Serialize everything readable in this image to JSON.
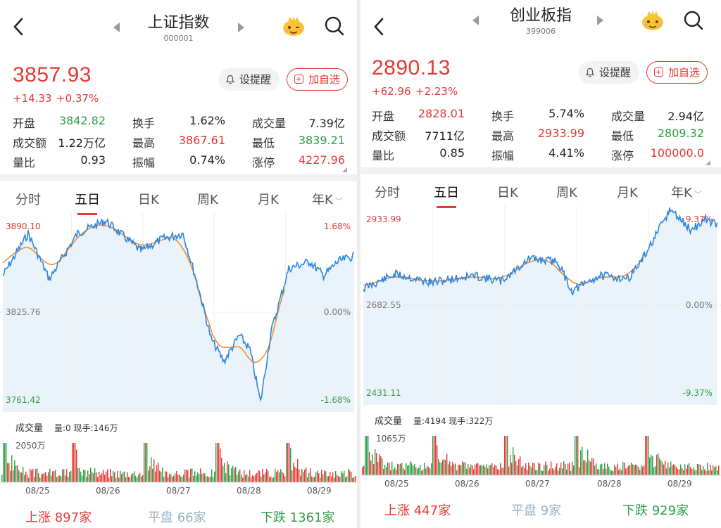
{
  "colors": {
    "up": "#e53935",
    "down": "#2e9e47",
    "line": "#2a86e0",
    "avg": "#f08a24",
    "area": "#dce9f7"
  },
  "panels": [
    {
      "title": "上证指数",
      "code": "000001",
      "price": "3857.93",
      "change": "+14.33",
      "change_pct": "+0.37%",
      "remind_label": "设提醒",
      "add_label": "加自选",
      "stats": [
        [
          {
            "label": "开盘",
            "value": "3842.82",
            "color": "dn"
          },
          {
            "label": "换手",
            "value": "1.62%",
            "color": "nt"
          },
          {
            "label": "成交量",
            "value": "7.39亿",
            "color": "nt"
          }
        ],
        [
          {
            "label": "成交额",
            "value": "1.22万亿",
            "color": "nt"
          },
          {
            "label": "最高",
            "value": "3867.61",
            "color": "up"
          },
          {
            "label": "最低",
            "value": "3839.21",
            "color": "dn"
          }
        ],
        [
          {
            "label": "量比",
            "value": "0.93",
            "color": "nt"
          },
          {
            "label": "振幅",
            "value": "0.74%",
            "color": "nt"
          },
          {
            "label": "涨停",
            "value": "4227.96",
            "color": "up"
          }
        ]
      ],
      "tabs": [
        "分时",
        "五日",
        "日K",
        "周K",
        "月K",
        "年K"
      ],
      "active_tab": 1,
      "chart": {
        "y_high": "3890.10",
        "y_mid": "3825.76",
        "y_low": "3761.42",
        "pct_high": "1.68%",
        "pct_mid": "0.00%",
        "pct_low": "-1.68%"
      },
      "volume": {
        "title": "成交量",
        "info": "量:0 现手:146万",
        "max": "2050万"
      },
      "dates": [
        "08/25",
        "08/26",
        "08/27",
        "08/28",
        "08/29"
      ],
      "breadth": {
        "up_label": "上涨",
        "up_count": "897家",
        "flat_label": "平盘",
        "flat_count": "66家",
        "down_label": "下跌",
        "down_count": "1361家"
      }
    },
    {
      "title": "创业板指",
      "code": "399006",
      "price": "2890.13",
      "change": "+62.96",
      "change_pct": "+2.23%",
      "remind_label": "设提醒",
      "add_label": "加自选",
      "stats": [
        [
          {
            "label": "开盘",
            "value": "2828.01",
            "color": "up"
          },
          {
            "label": "换手",
            "value": "5.74%",
            "color": "nt"
          },
          {
            "label": "成交量",
            "value": "2.94亿",
            "color": "nt"
          }
        ],
        [
          {
            "label": "成交额",
            "value": "7711亿",
            "color": "nt"
          },
          {
            "label": "最高",
            "value": "2933.99",
            "color": "up"
          },
          {
            "label": "最低",
            "value": "2809.32",
            "color": "dn"
          }
        ],
        [
          {
            "label": "量比",
            "value": "0.85",
            "color": "nt"
          },
          {
            "label": "振幅",
            "value": "4.41%",
            "color": "nt"
          },
          {
            "label": "涨停",
            "value": "100000.0",
            "color": "up"
          }
        ]
      ],
      "tabs": [
        "分时",
        "五日",
        "日K",
        "周K",
        "月K",
        "年K"
      ],
      "active_tab": 1,
      "chart": {
        "y_high": "2933.99",
        "y_mid": "2682.55",
        "y_low": "2431.11",
        "pct_high": "9.37%",
        "pct_mid": "0.00%",
        "pct_low": "-9.37%"
      },
      "volume": {
        "title": "成交量",
        "info": "量:4194 现手:322万",
        "max": "1065万"
      },
      "dates": [
        "08/25",
        "08/26",
        "08/27",
        "08/28",
        "08/29"
      ],
      "breadth": {
        "up_label": "上涨",
        "up_count": "447家",
        "flat_label": "平盘",
        "flat_count": "9家",
        "down_label": "下跌",
        "down_count": "929家"
      }
    }
  ]
}
